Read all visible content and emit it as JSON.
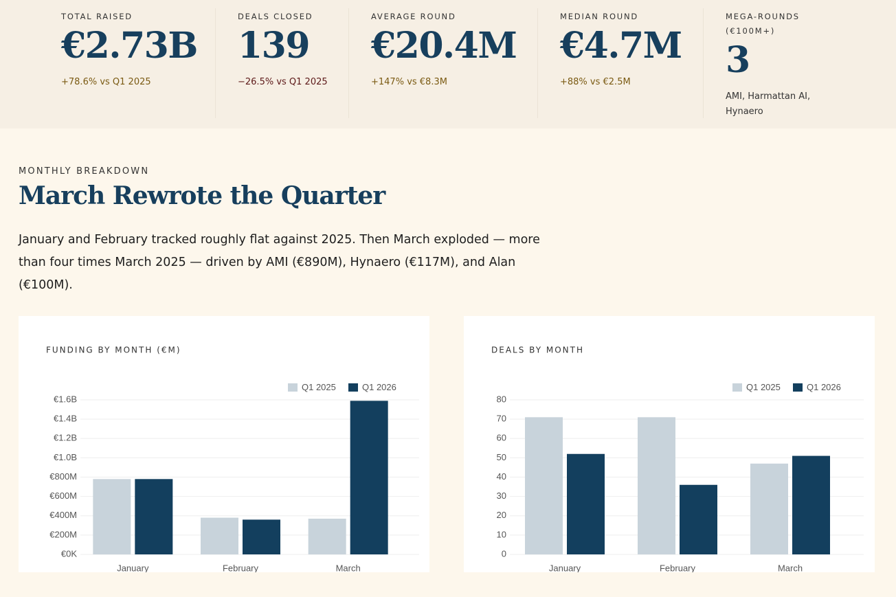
{
  "stats": [
    {
      "label": "TOTAL RAISED",
      "value": "€2.73B",
      "note": "+78.6% vs Q1 2025",
      "tone": "up"
    },
    {
      "label": "DEALS CLOSED",
      "value": "139",
      "note": "−26.5% vs Q1 2025",
      "tone": "down"
    },
    {
      "label": "AVERAGE ROUND",
      "value": "€20.4M",
      "note": "+147% vs €8.3M",
      "tone": "up"
    },
    {
      "label": "MEDIAN ROUND",
      "value": "€4.7M",
      "note": "+88% vs €2.5M",
      "tone": "up"
    },
    {
      "label": "MEGA-ROUNDS (€100M+)",
      "value": "3",
      "note": "AMI, Harmattan AI, Hynaero",
      "tone": "plain"
    }
  ],
  "section": {
    "eyebrow": "MONTHLY BREAKDOWN",
    "title": "March Rewrote the Quarter",
    "body": "January and February tracked roughly flat against 2025. Then March exploded — more than four times March 2025 — driven by AMI (€890M), Hynaero (€117M), and Alan (€100M)."
  },
  "chart_data": [
    {
      "type": "bar",
      "title": "FUNDING BY MONTH (€M)",
      "categories": [
        "January",
        "February",
        "March"
      ],
      "series": [
        {
          "name": "Q1 2025",
          "color": "#c8d3db",
          "values": [
            780,
            380,
            370
          ]
        },
        {
          "name": "Q1 2026",
          "color": "#133f5e",
          "values": [
            780,
            360,
            1590
          ]
        }
      ],
      "ylim": [
        0,
        1600
      ],
      "yticks": [
        {
          "value": 0,
          "label": "€0K"
        },
        {
          "value": 200,
          "label": "€200M"
        },
        {
          "value": 400,
          "label": "€400M"
        },
        {
          "value": 600,
          "label": "€600M"
        },
        {
          "value": 800,
          "label": "€800M"
        },
        {
          "value": 1000,
          "label": "€1.0B"
        },
        {
          "value": 1200,
          "label": "€1.2B"
        },
        {
          "value": 1400,
          "label": "€1.4B"
        },
        {
          "value": 1600,
          "label": "€1.6B"
        }
      ],
      "grid": true,
      "legend": "top-right"
    },
    {
      "type": "bar",
      "title": "DEALS BY MONTH",
      "categories": [
        "January",
        "February",
        "March"
      ],
      "series": [
        {
          "name": "Q1 2025",
          "color": "#c8d3db",
          "values": [
            71,
            71,
            47
          ]
        },
        {
          "name": "Q1 2026",
          "color": "#133f5e",
          "values": [
            52,
            36,
            51
          ]
        }
      ],
      "ylim": [
        0,
        80
      ],
      "yticks": [
        0,
        10,
        20,
        30,
        40,
        50,
        60,
        70,
        80
      ],
      "grid": true,
      "legend": "top-right"
    }
  ]
}
